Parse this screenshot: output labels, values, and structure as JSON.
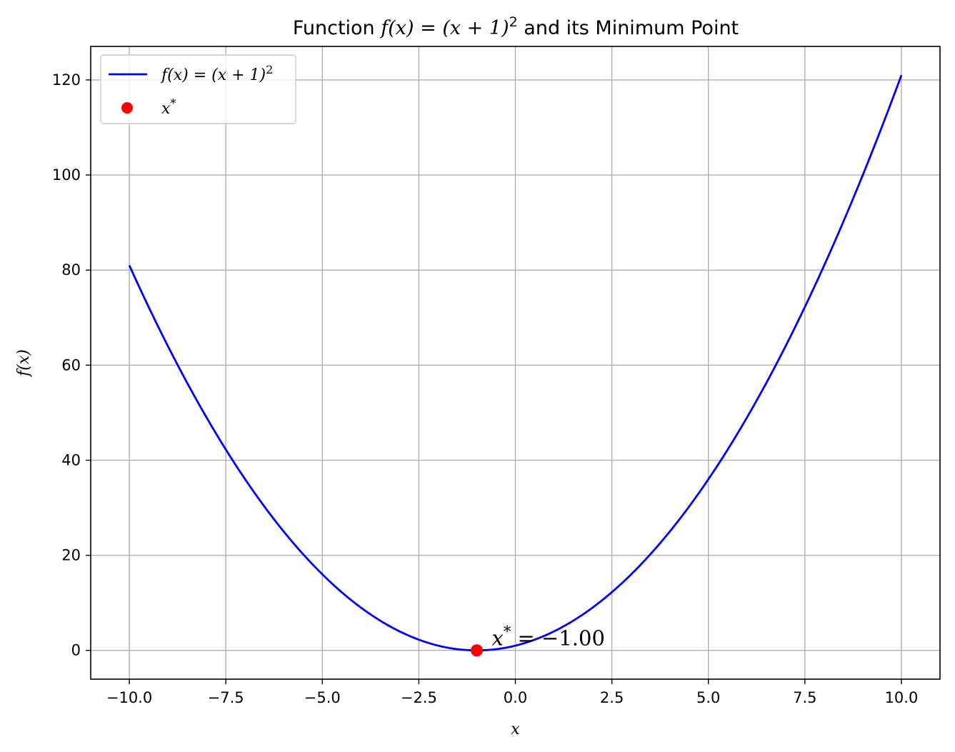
{
  "chart_data": {
    "type": "line",
    "title": "Function f(x) = (x + 1)² and its Minimum Point",
    "title_prefix": "Function ",
    "title_math": "f(x) = (x + 1)",
    "title_sup": "2",
    "title_suffix": " and its Minimum Point",
    "xlabel": "x",
    "ylabel": "f(x)",
    "xlim": [
      -11.0,
      11.0
    ],
    "ylim": [
      -6.05,
      127.05
    ],
    "x_ticks": [
      -10.0,
      -7.5,
      -5.0,
      -2.5,
      0.0,
      2.5,
      5.0,
      7.5,
      10.0
    ],
    "x_tick_labels": [
      "−10.0",
      "−7.5",
      "−5.0",
      "−2.5",
      "0.0",
      "2.5",
      "5.0",
      "7.5",
      "10.0"
    ],
    "y_ticks": [
      0,
      20,
      40,
      60,
      80,
      100,
      120
    ],
    "y_tick_labels": [
      "0",
      "20",
      "40",
      "60",
      "80",
      "100",
      "120"
    ],
    "grid": true,
    "legend_position": "top-left",
    "series": [
      {
        "name": "f(x) = (x + 1)²",
        "legend_math": "f(x) = (x + 1)",
        "legend_sup": "2",
        "type": "line",
        "color": "#0000ff",
        "function": "(x + 1)^2",
        "x_range": [
          -10,
          10
        ],
        "x": [
          -10,
          -9,
          -8,
          -7,
          -6,
          -5,
          -4,
          -3,
          -2,
          -1,
          0,
          1,
          2,
          3,
          4,
          5,
          6,
          7,
          8,
          9,
          10
        ],
        "y": [
          81,
          64,
          49,
          36,
          25,
          16,
          9,
          4,
          1,
          0,
          1,
          4,
          9,
          16,
          25,
          36,
          49,
          64,
          81,
          100,
          121
        ]
      },
      {
        "name": "x*",
        "legend_math": "x",
        "legend_sup": "*",
        "type": "scatter",
        "color": "#ff0000",
        "points": [
          {
            "x": -1.0,
            "y": 0.0
          }
        ]
      }
    ],
    "annotations": [
      {
        "text": "x* = −1.00",
        "math": "x",
        "sup": "*",
        "rest": " = −1.00",
        "x": -1.0,
        "y": 0.0
      }
    ]
  }
}
